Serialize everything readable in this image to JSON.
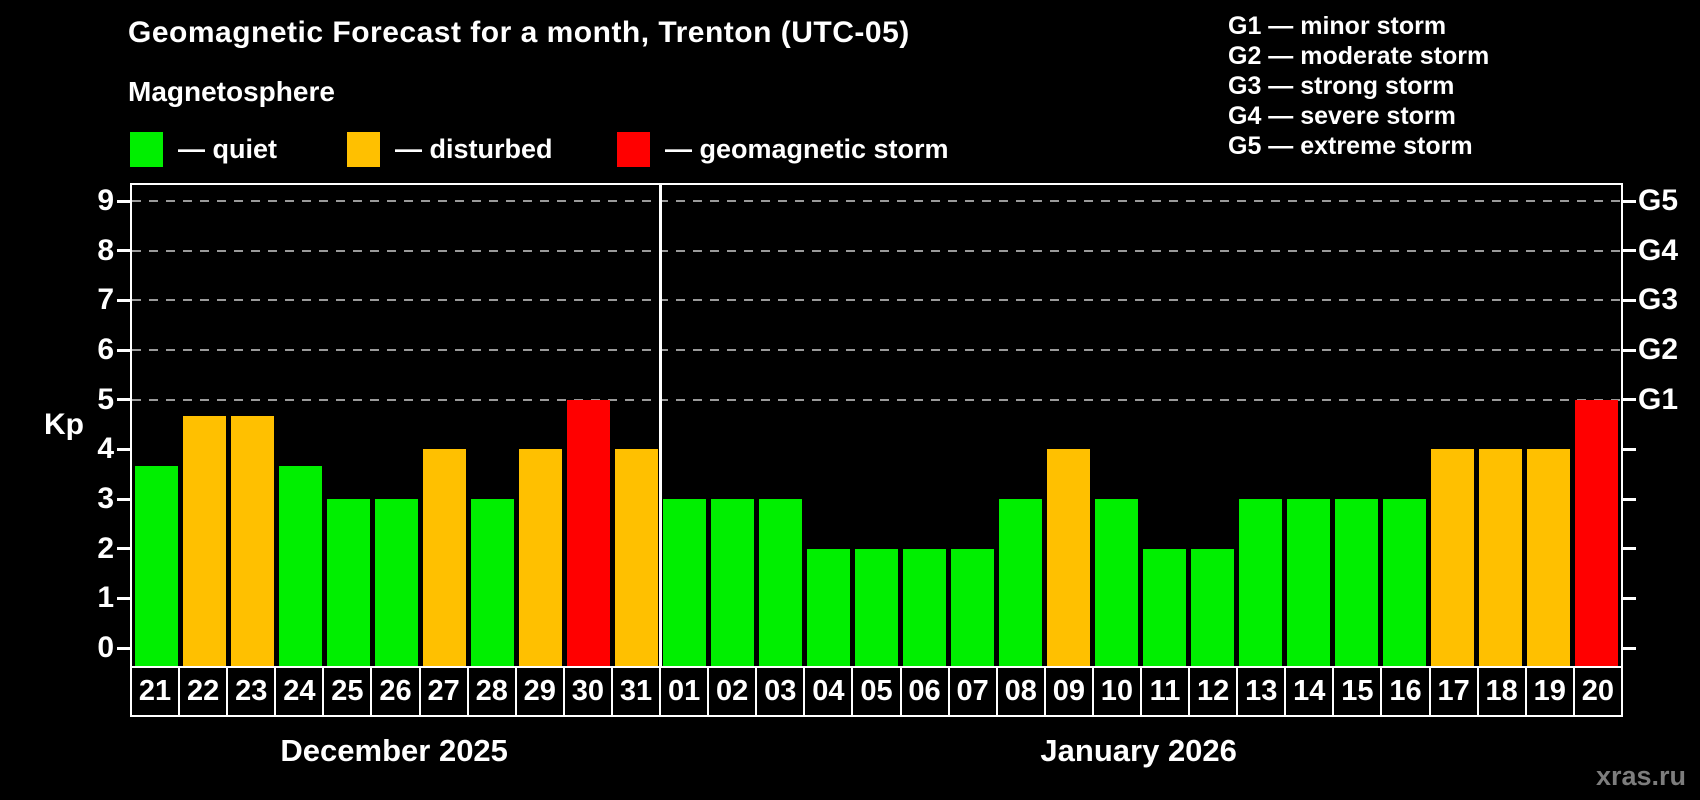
{
  "title": "Geomagnetic Forecast for a month, Trenton (UTC-05)",
  "subtitle": "Magnetosphere",
  "legend": {
    "items": [
      {
        "key": "quiet",
        "label": "— quiet",
        "color": "#00ef00"
      },
      {
        "key": "disturbed",
        "label": "— disturbed",
        "color": "#ffc000"
      },
      {
        "key": "storm",
        "label": "— geomagnetic storm",
        "color": "#ff0000"
      }
    ]
  },
  "g_scale_legend": [
    "G1 — minor storm",
    "G2 — moderate storm",
    "G3 — strong storm",
    "G4 — severe storm",
    "G5 — extreme storm"
  ],
  "watermark": "xras.ru",
  "colors": {
    "quiet": "#00ef00",
    "disturbed": "#ffc000",
    "storm": "#ff0000",
    "background": "#000000",
    "axis": "#ffffff",
    "grid": "#9a9a9a",
    "text": "#ffffff",
    "watermark": "#7d7d7d"
  },
  "chart_data": {
    "type": "bar",
    "title": "Geomagnetic Forecast for a month, Trenton (UTC-05)",
    "xlabel": "",
    "ylabel": "Kp",
    "ylim": [
      0,
      9
    ],
    "yticks": [
      0,
      1,
      2,
      3,
      4,
      5,
      6,
      7,
      8,
      9
    ],
    "gridlines": [
      5,
      6,
      7,
      8,
      9
    ],
    "grid": "dashed horizontal at storm levels only",
    "legend_position": "top-left",
    "right_axis_labels": [
      {
        "value": 5,
        "label": "G1"
      },
      {
        "value": 6,
        "label": "G2"
      },
      {
        "value": 7,
        "label": "G3"
      },
      {
        "value": 8,
        "label": "G4"
      },
      {
        "value": 9,
        "label": "G5"
      }
    ],
    "months": [
      {
        "label": "December 2025",
        "days": 11
      },
      {
        "label": "January 2026",
        "days": 20
      }
    ],
    "separator_after_index": 10,
    "days": [
      {
        "day": "21",
        "kp": 3.67,
        "status": "quiet"
      },
      {
        "day": "22",
        "kp": 4.67,
        "status": "disturbed"
      },
      {
        "day": "23",
        "kp": 4.67,
        "status": "disturbed"
      },
      {
        "day": "24",
        "kp": 3.67,
        "status": "quiet"
      },
      {
        "day": "25",
        "kp": 3,
        "status": "quiet"
      },
      {
        "day": "26",
        "kp": 3,
        "status": "quiet"
      },
      {
        "day": "27",
        "kp": 4,
        "status": "disturbed"
      },
      {
        "day": "28",
        "kp": 3,
        "status": "quiet"
      },
      {
        "day": "29",
        "kp": 4,
        "status": "disturbed"
      },
      {
        "day": "30",
        "kp": 5,
        "status": "storm"
      },
      {
        "day": "31",
        "kp": 4,
        "status": "disturbed"
      },
      {
        "day": "01",
        "kp": 3,
        "status": "quiet"
      },
      {
        "day": "02",
        "kp": 3,
        "status": "quiet"
      },
      {
        "day": "03",
        "kp": 3,
        "status": "quiet"
      },
      {
        "day": "04",
        "kp": 2,
        "status": "quiet"
      },
      {
        "day": "05",
        "kp": 2,
        "status": "quiet"
      },
      {
        "day": "06",
        "kp": 2,
        "status": "quiet"
      },
      {
        "day": "07",
        "kp": 2,
        "status": "quiet"
      },
      {
        "day": "08",
        "kp": 3,
        "status": "quiet"
      },
      {
        "day": "09",
        "kp": 4,
        "status": "disturbed"
      },
      {
        "day": "10",
        "kp": 3,
        "status": "quiet"
      },
      {
        "day": "11",
        "kp": 2,
        "status": "quiet"
      },
      {
        "day": "12",
        "kp": 2,
        "status": "quiet"
      },
      {
        "day": "13",
        "kp": 3,
        "status": "quiet"
      },
      {
        "day": "14",
        "kp": 3,
        "status": "quiet"
      },
      {
        "day": "15",
        "kp": 3,
        "status": "quiet"
      },
      {
        "day": "16",
        "kp": 3,
        "status": "quiet"
      },
      {
        "day": "17",
        "kp": 4,
        "status": "disturbed"
      },
      {
        "day": "18",
        "kp": 4,
        "status": "disturbed"
      },
      {
        "day": "19",
        "kp": 4,
        "status": "disturbed"
      },
      {
        "day": "20",
        "kp": 5,
        "status": "storm"
      }
    ]
  }
}
